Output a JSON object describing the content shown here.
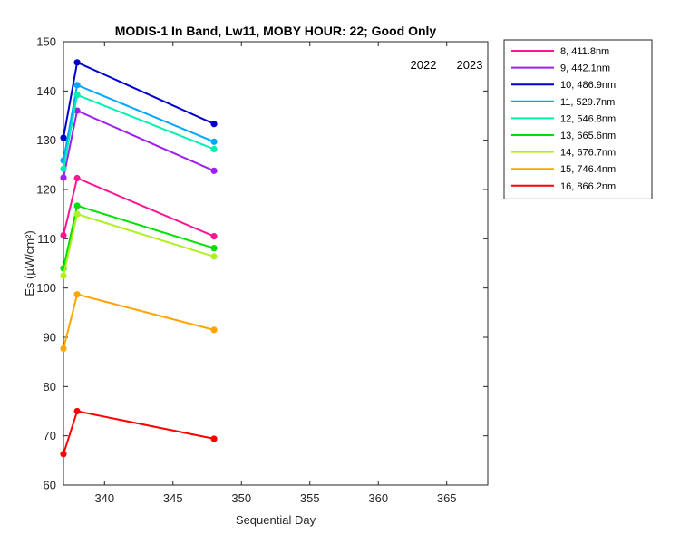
{
  "chart_data": {
    "type": "line",
    "title": "MODIS-1 In Band,  Lw11, MOBY HOUR: 22;  Good Only",
    "xlabel": "Sequential Day",
    "ylabel": "Es (µW/cm²)",
    "xlim": [
      337,
      368
    ],
    "ylim": [
      60,
      150
    ],
    "xticks": [
      340,
      345,
      350,
      355,
      360,
      365
    ],
    "yticks": [
      60,
      70,
      80,
      90,
      100,
      110,
      120,
      130,
      140,
      150
    ],
    "grid": false,
    "legend_position": "outside-right",
    "annotations": [
      "2022",
      "2023"
    ],
    "x": [
      337,
      338,
      348
    ],
    "series": [
      {
        "name": "8, 411.8nm",
        "color": "#ff1493",
        "values": [
          110.7,
          122.3,
          110.5
        ]
      },
      {
        "name": "9, 442.1nm",
        "color": "#a020f0",
        "values": [
          122.4,
          136.0,
          123.8
        ]
      },
      {
        "name": "10, 486.9nm",
        "color": "#0000cd",
        "values": [
          130.5,
          145.8,
          133.3
        ]
      },
      {
        "name": "11, 529.7nm",
        "color": "#00a8ff",
        "values": [
          125.9,
          141.2,
          129.7
        ]
      },
      {
        "name": "12, 546.8nm",
        "color": "#00f0b0",
        "values": [
          124.2,
          139.2,
          128.2
        ]
      },
      {
        "name": "13, 665.6nm",
        "color": "#00e000",
        "values": [
          104.0,
          116.7,
          108.1
        ]
      },
      {
        "name": "14, 676.7nm",
        "color": "#b0f020",
        "values": [
          102.5,
          115.0,
          106.4
        ]
      },
      {
        "name": "15, 746.4nm",
        "color": "#ffa500",
        "values": [
          87.7,
          98.7,
          91.5
        ]
      },
      {
        "name": "16, 866.2nm",
        "color": "#ff0000",
        "values": [
          66.3,
          75.0,
          69.4
        ]
      }
    ]
  }
}
